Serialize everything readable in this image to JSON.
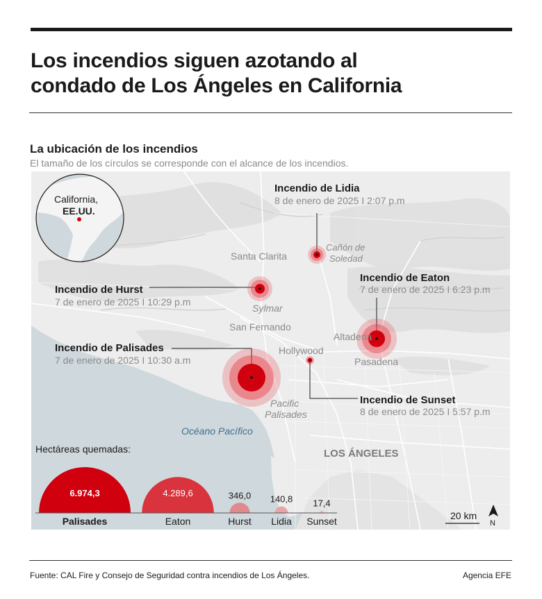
{
  "header": {
    "title_line1": "Los incendios siguen azotando al",
    "title_line2": "condado de Los Ángeles en California"
  },
  "section": {
    "subtitle": "La ubicación de los incendios",
    "note": "El tamaño de los círculos se corresponde con el alcance de los incendios."
  },
  "inset": {
    "label_line1": "California,",
    "label_line2": "EE.UU."
  },
  "places": {
    "santa_clarita": "Santa Clarita",
    "canon_1": "Cañón de",
    "canon_2": "Soledad",
    "sylmar": "Sylmar",
    "san_fernando": "San Fernando",
    "altadena": "Altadena",
    "hollywood": "Hollywood",
    "pasadena": "Pasadena",
    "pacific_1": "Pacific",
    "pacific_2": "Palisades",
    "ocean": "Océano Pacífico",
    "los_angeles": "LOS ÁNGELES"
  },
  "fires": {
    "lidia": {
      "name": "Incendio de Lidia",
      "date": "8 de enero de 2025 I 2:07 p.m"
    },
    "hurst": {
      "name": "Incendio de Hurst",
      "date": "7 de enero de 2025 I 10:29 p.m"
    },
    "eaton": {
      "name": "Incendio de Eaton",
      "date": "7 de enero de 2025 I 6:23 p.m"
    },
    "palisades": {
      "name": "Incendio de Palisades",
      "date": "7 de enero de 2025 I 10:30 a.m"
    },
    "sunset": {
      "name": "Incendio de Sunset",
      "date": "8 de enero de 2025 I 5:57 p.m"
    }
  },
  "legend": {
    "title": "Hectáreas quemadas:",
    "items": [
      {
        "name": "Palisades",
        "value": 6974.3,
        "value_label": "6.974,3"
      },
      {
        "name": "Eaton",
        "value": 4289.6,
        "value_label": "4.289,6"
      },
      {
        "name": "Hurst",
        "value": 346.0,
        "value_label": "346,0"
      },
      {
        "name": "Lidia",
        "value": 140.8,
        "value_label": "140,8"
      },
      {
        "name": "Sunset",
        "value": 17.4,
        "value_label": "17,4"
      }
    ]
  },
  "scale": {
    "label": "20 km"
  },
  "north": {
    "label": "N"
  },
  "colors": {
    "fire_core": "#d0000f",
    "fire_halo": "#e8404a",
    "water": "#cfd8dc",
    "land": "#ededed"
  },
  "footer": {
    "source": "Fuente: CAL Fire y Consejo de Seguridad contra incendios de Los Ángeles.",
    "agency": "Agencia EFE"
  }
}
